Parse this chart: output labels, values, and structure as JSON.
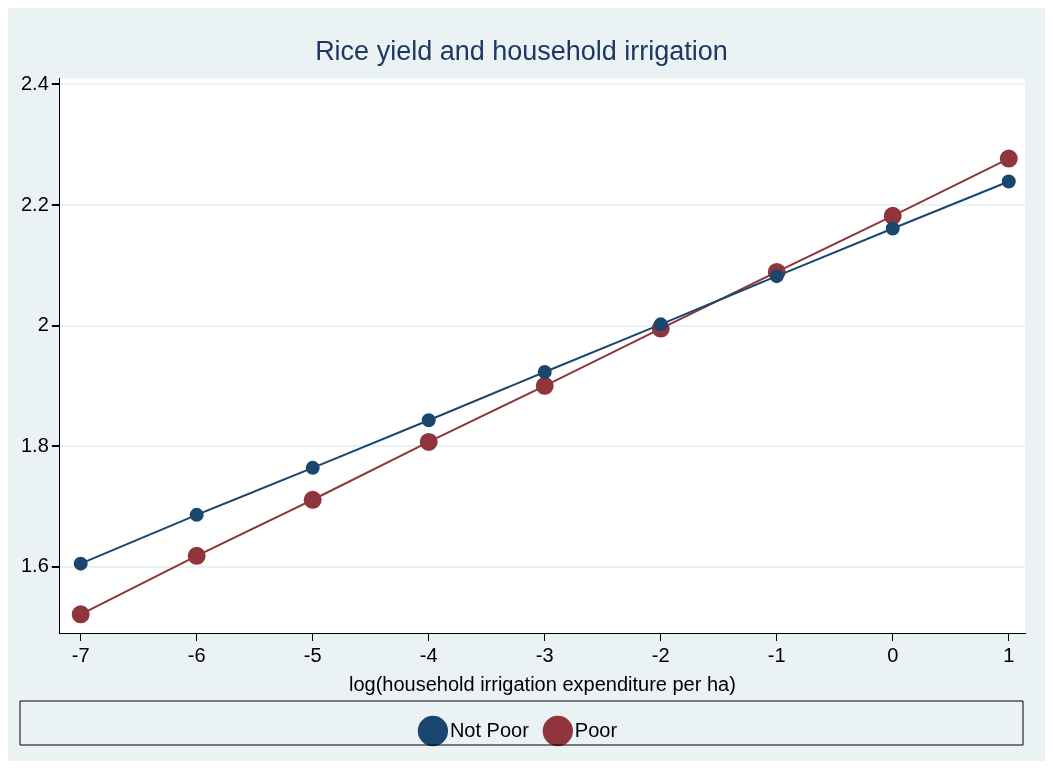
{
  "chart_data": {
    "type": "line",
    "title": "Rice yield and household irrigation",
    "xlabel": "log(household irrigation expenditure per ha)",
    "x": [
      -7,
      -6,
      -5,
      -4,
      -3,
      -2,
      -1,
      0,
      1
    ],
    "series": [
      {
        "name": "Not Poor",
        "color": "#1a476f",
        "values": [
          1.605,
          1.686,
          1.764,
          1.843,
          1.923,
          2.002,
          2.082,
          2.161,
          2.239
        ]
      },
      {
        "name": "Poor",
        "color": "#90353b",
        "values": [
          1.521,
          1.618,
          1.711,
          1.807,
          1.9,
          1.995,
          2.089,
          2.182,
          2.277
        ]
      }
    ],
    "xlim": [
      -7.18,
      1.14
    ],
    "xticks": [
      -7,
      -6,
      -5,
      -4,
      -3,
      -2,
      -1,
      0,
      1
    ],
    "ylim": [
      1.49,
      2.41
    ],
    "yticks": [
      1.6,
      1.8,
      2,
      2.2,
      2.4
    ],
    "grid": "y",
    "legend": "bottom",
    "marker": "circle",
    "line_style": "solid"
  }
}
